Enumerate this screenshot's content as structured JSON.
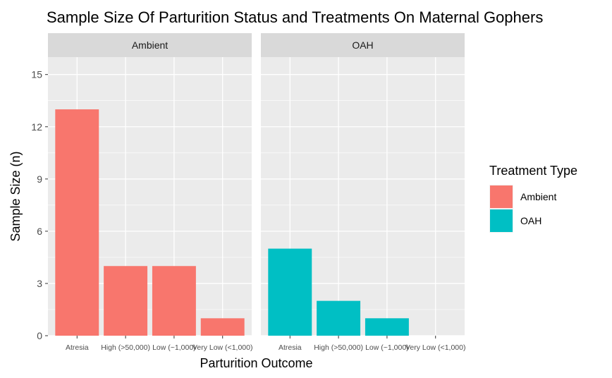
{
  "chart_data": {
    "type": "bar",
    "title": "Sample Size Of Parturition Status and Treatments On Maternal Gophers",
    "xlabel": "Parturition Outcome",
    "ylabel": "Sample Size (n)",
    "ylim": [
      0,
      16
    ],
    "yticks": [
      0,
      3,
      6,
      9,
      12,
      15
    ],
    "grid": true,
    "categories": [
      "Atresia",
      "High (>50,000)",
      "Low (~1,000)",
      "Very Low (<1,000)"
    ],
    "facets": [
      {
        "name": "Ambient",
        "color": "#F8766D",
        "values": [
          13,
          4,
          4,
          1
        ]
      },
      {
        "name": "OAH",
        "color": "#00BFC4",
        "values": [
          5,
          2,
          1,
          0
        ]
      }
    ],
    "legend": {
      "title": "Treatment Type",
      "position": "right",
      "items": [
        {
          "label": "Ambient",
          "color": "#F8766D"
        },
        {
          "label": "OAH",
          "color": "#00BFC4"
        }
      ]
    }
  }
}
